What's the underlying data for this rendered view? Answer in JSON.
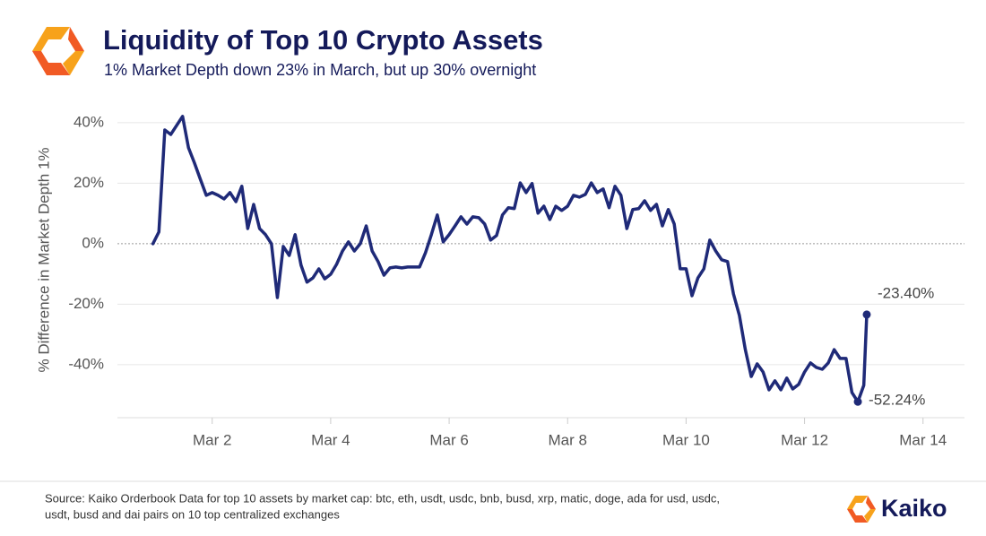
{
  "chart_data": {
    "type": "line",
    "title": "Liquidity of Top 10 Crypto Assets",
    "subtitle": "1% Market Depth down 23% in March, but up 30% overnight",
    "y_label": "% Difference in Market Depth 1%",
    "source_lines": [
      "Source: Kaiko Orderbook Data for top 10 assets by market cap: btc, eth, usdt, usdc, bnb, busd, xrp, matic, doge, ada for usd, usdc,",
      "usdt, busd and dai pairs on 10 top centralized exchanges"
    ],
    "brand": "Kaiko",
    "color": "#1f2a78",
    "grid": true,
    "xlim": [
      0.4,
      14.7
    ],
    "ylim": [
      -57.5,
      45
    ],
    "xticks": [
      {
        "value": 2,
        "label": "Mar 2"
      },
      {
        "value": 4,
        "label": "Mar 4"
      },
      {
        "value": 6,
        "label": "Mar 6"
      },
      {
        "value": 8,
        "label": "Mar 8"
      },
      {
        "value": 10,
        "label": "Mar 10"
      },
      {
        "value": 12,
        "label": "Mar 12"
      },
      {
        "value": 14,
        "label": "Mar 14"
      }
    ],
    "yticks": [
      {
        "value": -40,
        "label": "-40%"
      },
      {
        "value": -20,
        "label": "-20%"
      },
      {
        "value": 0,
        "label": "0%"
      },
      {
        "value": 20,
        "label": "20%"
      },
      {
        "value": 40,
        "label": "40%"
      }
    ],
    "x": [
      1,
      1.1,
      1.2,
      1.3,
      1.4,
      1.5,
      1.6,
      1.7,
      1.8,
      1.9,
      2,
      2.1,
      2.2,
      2.3,
      2.4,
      2.5,
      2.6,
      2.7,
      2.8,
      2.9,
      3,
      3.1,
      3.2,
      3.3,
      3.4,
      3.5,
      3.6,
      3.7,
      3.8,
      3.9,
      4,
      4.1,
      4.2,
      4.3,
      4.4,
      4.5,
      4.6,
      4.7,
      4.8,
      4.9,
      5,
      5.1,
      5.2,
      5.3,
      5.4,
      5.5,
      5.6,
      5.7,
      5.8,
      5.9,
      6,
      6.1,
      6.2,
      6.3,
      6.4,
      6.5,
      6.6,
      6.7,
      6.8,
      6.9,
      7,
      7.1,
      7.2,
      7.3,
      7.4,
      7.5,
      7.6,
      7.7,
      7.8,
      7.9,
      8,
      8.1,
      8.2,
      8.3,
      8.4,
      8.5,
      8.6,
      8.7,
      8.8,
      8.9,
      9,
      9.1,
      9.2,
      9.3,
      9.4,
      9.5,
      9.6,
      9.7,
      9.8,
      9.9,
      10,
      10.1,
      10.2,
      10.3,
      10.4,
      10.5,
      10.6,
      10.7,
      10.8,
      10.9,
      11,
      11.1,
      11.2,
      11.3,
      11.4,
      11.5,
      11.6,
      11.7,
      11.8,
      11.9,
      12,
      12.1,
      12.2,
      12.3,
      12.4,
      12.5,
      12.6,
      12.7,
      12.8,
      12.9,
      13,
      13.05
    ],
    "values": [
      0,
      3.9,
      37.6,
      36.1,
      39.1,
      42.1,
      31.7,
      26.7,
      21.3,
      16.0,
      16.9,
      16.0,
      14.8,
      16.9,
      13.9,
      19.0,
      5.0,
      13.0,
      5.0,
      3.0,
      0,
      -17.8,
      -0.9,
      -3.9,
      3.0,
      -7.1,
      -12.7,
      -11.3,
      -8.3,
      -11.6,
      -10.1,
      -6.8,
      -2.4,
      0.6,
      -2.4,
      0,
      5.9,
      -2.4,
      -5.9,
      -10.4,
      -8.0,
      -7.7,
      -8.0,
      -7.7,
      -7.7,
      -7.7,
      -3.0,
      3.0,
      9.5,
      0.6,
      3.0,
      5.9,
      8.9,
      6.5,
      8.9,
      8.6,
      6.5,
      1.2,
      2.7,
      9.5,
      11.9,
      11.6,
      20.1,
      16.9,
      19.9,
      10.1,
      12.4,
      8.0,
      12.4,
      11.0,
      12.4,
      16.0,
      15.4,
      16.3,
      20.1,
      16.9,
      18.1,
      11.9,
      19.0,
      16.0,
      5.0,
      11.3,
      11.6,
      14.2,
      11.0,
      13.0,
      5.9,
      11.3,
      6.5,
      -8.3,
      -8.3,
      -17.2,
      -11.3,
      -8.3,
      1.2,
      -2.4,
      -5.3,
      -5.9,
      -16.6,
      -23.7,
      -35.0,
      -43.9,
      -39.7,
      -42.4,
      -48.3,
      -45.3,
      -48.3,
      -44.4,
      -48.0,
      -46.5,
      -42.4,
      -39.4,
      -40.9,
      -41.5,
      -39.4,
      -35.0,
      -37.9,
      -37.9,
      -49.2,
      -52.24,
      -46.8,
      -23.4
    ],
    "value_labels": [
      null,
      null,
      null,
      null,
      null,
      null,
      null,
      null,
      null,
      null,
      null,
      null,
      null,
      null,
      null,
      null,
      null,
      null,
      null,
      null,
      null,
      null,
      null,
      null,
      null,
      null,
      null,
      null,
      null,
      null,
      null,
      null,
      null,
      null,
      null,
      null,
      null,
      null,
      null,
      null,
      null,
      null,
      null,
      null,
      null,
      null,
      null,
      null,
      null,
      null,
      null,
      null,
      null,
      null,
      null,
      null,
      null,
      null,
      null,
      null,
      null,
      null,
      null,
      null,
      null,
      null,
      null,
      null,
      null,
      null,
      null,
      null,
      null,
      null,
      null,
      null,
      null,
      null,
      null,
      null,
      null,
      null,
      null,
      null,
      null,
      null,
      null,
      null,
      null,
      null,
      null,
      null,
      null,
      null,
      null,
      null,
      null,
      null,
      null,
      null,
      null,
      null,
      null,
      null,
      null,
      null,
      null,
      null,
      null,
      null,
      null,
      null,
      null,
      null,
      null,
      null,
      null,
      null,
      null,
      "-52.24%",
      null,
      "-23.40%"
    ]
  }
}
